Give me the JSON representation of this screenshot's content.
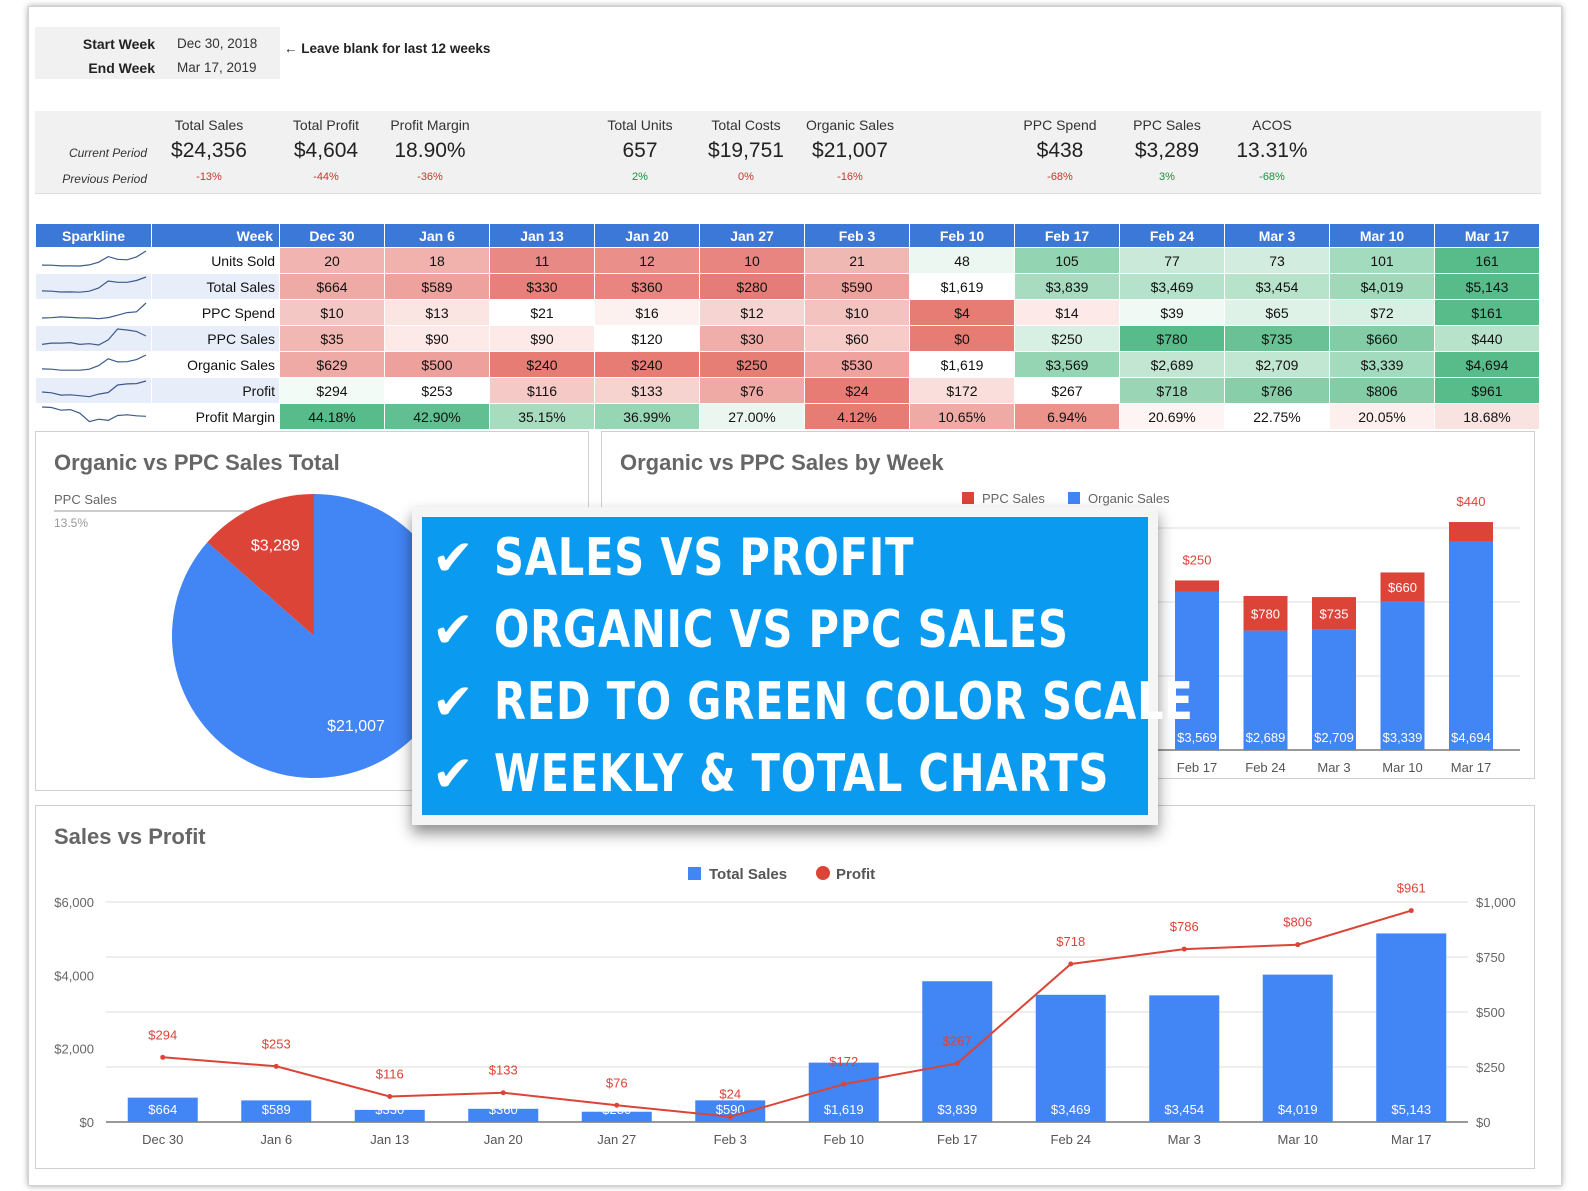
{
  "week_selector": {
    "start_label": "Start Week",
    "start_value": "Dec 30, 2018",
    "end_label": "End Week",
    "end_value": "Mar 17, 2019",
    "hint": "← Leave blank for last 12 weeks"
  },
  "metrics": {
    "current_label": "Current Period",
    "previous_label": "Previous Period",
    "items": [
      {
        "name": "Total Sales",
        "value": "$24,356",
        "change": "-13%",
        "trend": "neg"
      },
      {
        "name": "Total Profit",
        "value": "$4,604",
        "change": "-44%",
        "trend": "neg"
      },
      {
        "name": "Profit Margin",
        "value": "18.90%",
        "change": "-36%",
        "trend": "neg"
      },
      {
        "name": "Total Units",
        "value": "657",
        "change": "2%",
        "trend": "pos"
      },
      {
        "name": "Total Costs",
        "value": "$19,751",
        "change": "0%",
        "trend": "neg"
      },
      {
        "name": "Organic Sales",
        "value": "$21,007",
        "change": "-16%",
        "trend": "neg"
      },
      {
        "name": "PPC Spend",
        "value": "$438",
        "change": "-68%",
        "trend": "neg"
      },
      {
        "name": "PPC Sales",
        "value": "$3,289",
        "change": "3%",
        "trend": "pos"
      },
      {
        "name": "ACOS",
        "value": "13.31%",
        "change": "-68%",
        "trend": "pos"
      }
    ]
  },
  "table": {
    "sparkline_header": "Sparkline",
    "week_header": "Week",
    "weeks": [
      "Dec 30",
      "Jan 6",
      "Jan 13",
      "Jan 20",
      "Jan 27",
      "Feb 3",
      "Feb 10",
      "Feb 17",
      "Feb 24",
      "Mar 3",
      "Mar 10",
      "Mar 17"
    ],
    "rows": [
      {
        "label": "Units Sold",
        "values": [
          "20",
          "18",
          "11",
          "12",
          "10",
          "21",
          "48",
          "105",
          "77",
          "73",
          "101",
          "161"
        ],
        "colors": [
          "#f2b4b0",
          "#f1b1ad",
          "#e88985",
          "#ea8f8a",
          "#e88581",
          "#f0b8b3",
          "#ecf7f1",
          "#93d5b2",
          "#cbe9d8",
          "#d2ece0",
          "#a2dbbd",
          "#57bb8a"
        ]
      },
      {
        "label": "Total Sales",
        "values": [
          "$664",
          "$589",
          "$330",
          "$360",
          "$280",
          "$590",
          "$1,619",
          "$3,839",
          "$3,469",
          "$3,454",
          "$4,019",
          "$5,143"
        ],
        "colors": [
          "#f0aaa6",
          "#eea29e",
          "#e7807b",
          "#e88580",
          "#e67c77",
          "#eea29e",
          "#ffffff",
          "#a7dcc0",
          "#b5e2ca",
          "#b7e3cb",
          "#9fd9ba",
          "#57bb8a"
        ]
      },
      {
        "label": "PPC Spend",
        "values": [
          "$10",
          "$13",
          "$21",
          "$16",
          "$12",
          "$10",
          "$4",
          "$14",
          "$39",
          "$65",
          "$72",
          "$161"
        ],
        "colors": [
          "#f3c7c4",
          "#fbe5e3",
          "#ffffff",
          "#fdf1f0",
          "#f6d4d1",
          "#f2c3bf",
          "#e67c73",
          "#fce9e8",
          "#f1f9f5",
          "#dff2e8",
          "#d8efe3",
          "#57bb8a"
        ]
      },
      {
        "label": "PPC Sales",
        "values": [
          "$35",
          "$90",
          "$90",
          "$120",
          "$30",
          "$60",
          "$0",
          "$250",
          "$780",
          "$735",
          "$660",
          "$440"
        ],
        "colors": [
          "#f1b7b3",
          "#fde9e7",
          "#fde9e7",
          "#ffffff",
          "#efaeaa",
          "#f6cbc8",
          "#e67c73",
          "#d8efe3",
          "#57bb8a",
          "#6ac294",
          "#84cca6",
          "#b8e3cb"
        ]
      },
      {
        "label": "Organic Sales",
        "values": [
          "$629",
          "$500",
          "$240",
          "$240",
          "$250",
          "$530",
          "$1,619",
          "$3,569",
          "$2,689",
          "$2,709",
          "$3,339",
          "$4,694"
        ],
        "colors": [
          "#f0aaa6",
          "#eea09c",
          "#e67c73",
          "#e67c73",
          "#e67e76",
          "#efa29e",
          "#ffffff",
          "#96d5b3",
          "#c2e6d2",
          "#c1e6d1",
          "#a2dbbd",
          "#57bb8a"
        ]
      },
      {
        "label": "Profit",
        "values": [
          "$294",
          "$253",
          "$116",
          "$133",
          "$76",
          "$24",
          "$172",
          "$267",
          "$718",
          "$786",
          "$806",
          "$961"
        ],
        "colors": [
          "#f3fbf7",
          "#ffffff",
          "#f5c9c6",
          "#f7d3d0",
          "#efaaa5",
          "#e67c73",
          "#f9dedb",
          "#ffffff",
          "#9ad6b5",
          "#87cea9",
          "#84cca6",
          "#57bb8a"
        ]
      },
      {
        "label": "Profit Margin",
        "values": [
          "44.18%",
          "42.90%",
          "35.15%",
          "36.99%",
          "27.00%",
          "4.12%",
          "10.65%",
          "6.94%",
          "20.69%",
          "22.75%",
          "20.05%",
          "18.68%"
        ],
        "colors": [
          "#57bb8a",
          "#62bf91",
          "#a7dcbf",
          "#97d6b4",
          "#eaf6ef",
          "#e67c73",
          "#f0aaa5",
          "#eb928b",
          "#fdf4f3",
          "#ffffff",
          "#fcefee",
          "#f9e3e1"
        ]
      }
    ],
    "sparkline_heights": [
      [
        0.12,
        0.11,
        0.07,
        0.07,
        0.06,
        0.13,
        0.3,
        0.65,
        0.48,
        0.45,
        0.63,
        1.0
      ],
      [
        0.13,
        0.11,
        0.06,
        0.07,
        0.05,
        0.11,
        0.31,
        0.75,
        0.67,
        0.67,
        0.78,
        1.0
      ],
      [
        0.06,
        0.08,
        0.13,
        0.1,
        0.07,
        0.06,
        0.02,
        0.09,
        0.24,
        0.4,
        0.45,
        1.0
      ],
      [
        0.04,
        0.12,
        0.12,
        0.15,
        0.04,
        0.08,
        0.0,
        0.32,
        1.0,
        0.94,
        0.85,
        0.56
      ],
      [
        0.13,
        0.11,
        0.05,
        0.05,
        0.05,
        0.11,
        0.34,
        0.76,
        0.57,
        0.58,
        0.71,
        1.0
      ],
      [
        0.31,
        0.26,
        0.12,
        0.14,
        0.08,
        0.02,
        0.18,
        0.28,
        0.75,
        0.82,
        0.84,
        1.0
      ],
      [
        1.0,
        0.97,
        0.8,
        0.84,
        0.61,
        0.09,
        0.24,
        0.16,
        0.47,
        0.51,
        0.45,
        0.42
      ]
    ]
  },
  "pie_chart": {
    "title": "Organic vs PPC Sales Total",
    "legend_name": "PPC Sales",
    "legend_pct": "13.5%",
    "chart_data": {
      "type": "pie",
      "slices": [
        {
          "label": "PPC Sales",
          "value": 3289,
          "display": "$3,289",
          "color": "#db4437"
        },
        {
          "label": "Organic Sales",
          "value": 21007,
          "display": "$21,007",
          "color": "#4285f4"
        }
      ]
    }
  },
  "weekly_chart": {
    "title": "Organic vs PPC Sales by Week",
    "legend": [
      {
        "name": "PPC Sales",
        "color": "#db4437"
      },
      {
        "name": "Organic Sales",
        "color": "#4285f4"
      }
    ],
    "chart_data": {
      "type": "bar",
      "stacked": true,
      "categories": [
        "Feb 17",
        "Feb 24",
        "Mar 3",
        "Mar 10",
        "Mar 17"
      ],
      "series": [
        {
          "name": "Organic Sales",
          "values": [
            3569,
            2689,
            2709,
            3339,
            4694
          ],
          "labels": [
            "$3,569",
            "$2,689",
            "$2,709",
            "$3,339",
            "$4,694"
          ]
        },
        {
          "name": "PPC Sales",
          "values": [
            250,
            780,
            735,
            660,
            440
          ],
          "labels": [
            "$250",
            "$780",
            "$735",
            "$660",
            "$440"
          ]
        }
      ],
      "ymax": 6000
    }
  },
  "promo": {
    "check": "✔",
    "lines": [
      "SALES VS PROFIT",
      "ORGANIC VS PPC SALES",
      "RED TO GREEN COLOR SCALE",
      "WEEKLY & TOTAL CHARTS"
    ]
  },
  "combo_chart": {
    "title": "Sales vs Profit",
    "legend": [
      {
        "name": "Total Sales",
        "color": "#4285f4",
        "shape": "square"
      },
      {
        "name": "Profit",
        "color": "#db4437",
        "shape": "circle"
      }
    ],
    "chart_data": {
      "type": "bar",
      "categories": [
        "Dec 30",
        "Jan 6",
        "Jan 13",
        "Jan 20",
        "Jan 27",
        "Feb 3",
        "Feb 10",
        "Feb 17",
        "Feb 24",
        "Mar 3",
        "Mar 10",
        "Mar 17"
      ],
      "series": [
        {
          "name": "Total Sales",
          "type": "bar",
          "axis": "left",
          "values": [
            664,
            589,
            330,
            360,
            280,
            590,
            1619,
            3839,
            3469,
            3454,
            4019,
            5143
          ],
          "labels": [
            "$664",
            "$589",
            "$330",
            "$360",
            "$280",
            "$590",
            "$1,619",
            "$3,839",
            "$3,469",
            "$3,454",
            "$4,019",
            "$5,143"
          ]
        },
        {
          "name": "Profit",
          "type": "line",
          "axis": "right",
          "values": [
            294,
            253,
            116,
            133,
            76,
            24,
            172,
            267,
            718,
            786,
            806,
            961
          ],
          "labels": [
            "$294",
            "$253",
            "$116",
            "$133",
            "$76",
            "$24",
            "$172",
            "$267",
            "$718",
            "$786",
            "$806",
            "$961"
          ]
        }
      ],
      "left_axis": {
        "ticks": [
          "$0",
          "$2,000",
          "$4,000",
          "$6,000"
        ],
        "max": 6000
      },
      "right_axis": {
        "ticks": [
          "$0",
          "$250",
          "$500",
          "$750",
          "$1,000"
        ],
        "max": 1000
      }
    }
  }
}
